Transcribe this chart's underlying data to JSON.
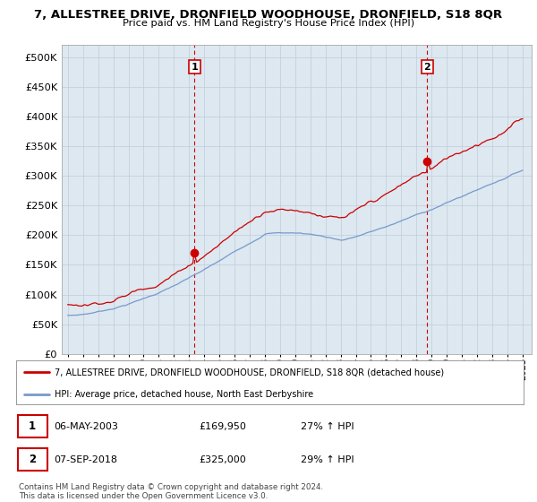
{
  "title": "7, ALLESTREE DRIVE, DRONFIELD WOODHOUSE, DRONFIELD, S18 8QR",
  "subtitle": "Price paid vs. HM Land Registry's House Price Index (HPI)",
  "ylim": [
    0,
    520000
  ],
  "yticks": [
    0,
    50000,
    100000,
    150000,
    200000,
    250000,
    300000,
    350000,
    400000,
    450000,
    500000
  ],
  "sale1_year": 2003.35,
  "sale1_price": 169950,
  "sale2_year": 2018.72,
  "sale2_price": 325000,
  "house_color": "#cc0000",
  "hpi_color": "#7799cc",
  "vline_color": "#cc0000",
  "chart_bg": "#dde8f0",
  "legend_house": "7, ALLESTREE DRIVE, DRONFIELD WOODHOUSE, DRONFIELD, S18 8QR (detached house)",
  "legend_hpi": "HPI: Average price, detached house, North East Derbyshire",
  "table_row1": [
    "1",
    "06-MAY-2003",
    "£169,950",
    "27% ↑ HPI"
  ],
  "table_row2": [
    "2",
    "07-SEP-2018",
    "£325,000",
    "29% ↑ HPI"
  ],
  "footnote": "Contains HM Land Registry data © Crown copyright and database right 2024.\nThis data is licensed under the Open Government Licence v3.0.",
  "background_color": "#ffffff",
  "grid_color": "#c0ccd8"
}
